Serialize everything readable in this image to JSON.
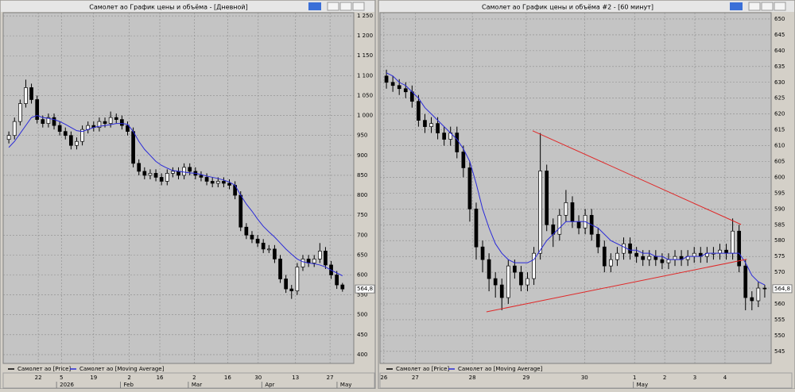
{
  "chart_data": [
    {
      "type": "candlestick",
      "title": "Самолет ао График цены и объёма - [Дневной]",
      "series": [
        {
          "name": "Самолет ао [Price]",
          "color": "#000000",
          "open": [
            940,
            950,
            985,
            1030,
            1070,
            1040,
            990,
            980,
            995,
            975,
            960,
            950,
            925,
            935,
            965,
            975,
            970,
            985,
            980,
            995,
            990,
            975,
            960,
            880,
            860,
            850,
            855,
            845,
            835,
            855,
            860,
            850,
            870,
            860,
            850,
            845,
            835,
            830,
            835,
            830,
            825,
            800,
            720,
            700,
            690,
            680,
            665,
            665,
            640,
            590,
            565,
            560,
            620,
            640,
            630,
            640,
            660,
            625,
            600,
            575
          ],
          "high": [
            960,
            995,
            1040,
            1090,
            1080,
            1050,
            1000,
            1005,
            1005,
            985,
            970,
            960,
            945,
            975,
            985,
            985,
            995,
            995,
            1010,
            1005,
            1000,
            985,
            970,
            890,
            870,
            865,
            865,
            855,
            865,
            870,
            870,
            880,
            880,
            870,
            860,
            855,
            845,
            845,
            845,
            840,
            835,
            810,
            730,
            710,
            700,
            690,
            675,
            675,
            650,
            600,
            575,
            630,
            650,
            650,
            650,
            680,
            670,
            635,
            610,
            580
          ],
          "low": [
            930,
            940,
            975,
            1020,
            1030,
            980,
            970,
            970,
            965,
            950,
            940,
            915,
            915,
            925,
            955,
            960,
            960,
            970,
            970,
            980,
            965,
            950,
            870,
            850,
            840,
            840,
            835,
            825,
            825,
            845,
            840,
            840,
            850,
            840,
            835,
            825,
            820,
            820,
            820,
            815,
            790,
            710,
            690,
            680,
            670,
            655,
            655,
            630,
            580,
            555,
            540,
            550,
            610,
            620,
            620,
            630,
            615,
            590,
            565,
            558
          ],
          "close": [
            950,
            985,
            1030,
            1070,
            1040,
            990,
            980,
            995,
            975,
            960,
            950,
            925,
            935,
            965,
            975,
            970,
            985,
            980,
            995,
            990,
            975,
            960,
            880,
            860,
            850,
            855,
            845,
            835,
            855,
            860,
            850,
            870,
            860,
            850,
            845,
            835,
            830,
            835,
            830,
            825,
            800,
            720,
            700,
            690,
            680,
            665,
            665,
            640,
            590,
            565,
            560,
            620,
            640,
            630,
            640,
            660,
            625,
            600,
            575,
            564.8
          ]
        },
        {
          "name": "Самолет ао [Moving Average]",
          "color": "#2a2ad8",
          "values": [
            920,
            935,
            955,
            975,
            995,
            1000,
            995,
            993,
            990,
            985,
            978,
            970,
            962,
            960,
            965,
            970,
            973,
            975,
            977,
            980,
            980,
            978,
            960,
            935,
            915,
            900,
            885,
            875,
            868,
            862,
            860,
            858,
            856,
            855,
            852,
            848,
            845,
            842,
            838,
            833,
            825,
            800,
            778,
            760,
            740,
            722,
            708,
            695,
            680,
            665,
            652,
            640,
            633,
            630,
            628,
            625,
            620,
            612,
            605,
            598
          ]
        }
      ],
      "xlim": [
        -1,
        61
      ],
      "xticks": [
        {
          "value": 5.2,
          "label": "22"
        },
        {
          "value": 9.3,
          "label": "5"
        },
        {
          "value": 15,
          "label": "19"
        },
        {
          "value": 21.3,
          "label": "2"
        },
        {
          "value": 26.7,
          "label": "16"
        },
        {
          "value": 32.8,
          "label": "2"
        },
        {
          "value": 38.7,
          "label": "16"
        },
        {
          "value": 44.1,
          "label": "30"
        },
        {
          "value": 50.7,
          "label": "13"
        },
        {
          "value": 56.8,
          "label": "27"
        }
      ],
      "x2ticks": [
        {
          "value": 9,
          "label": "2026"
        },
        {
          "value": 20.3,
          "label": "Feb"
        },
        {
          "value": 32.3,
          "label": "Mar"
        },
        {
          "value": 45.3,
          "label": "Apr"
        },
        {
          "value": 58.6,
          "label": "May"
        }
      ],
      "ylim": [
        378,
        1258
      ],
      "yticks": [
        400,
        450,
        500,
        550,
        600,
        650,
        700,
        750,
        800,
        850,
        900,
        950,
        {
          "value": 1000,
          "label": "1 000"
        },
        {
          "value": 1050,
          "label": "1 050"
        },
        {
          "value": 1100,
          "label": "1 100"
        },
        {
          "value": 1150,
          "label": "1 150"
        },
        {
          "value": 1200,
          "label": "1 200"
        },
        {
          "value": 1250,
          "label": "1 250"
        }
      ],
      "grid": true,
      "last_price": {
        "value": 564.8,
        "label": "564,8"
      }
    },
    {
      "type": "candlestick",
      "title": "Самолет ао График цены и объёма #2 - [60 минут]",
      "series": [
        {
          "name": "Самолет ао [Price]",
          "color": "#000000",
          "open": [
            632,
            630,
            629,
            628,
            627,
            624,
            618,
            616,
            617,
            614,
            612,
            614,
            608,
            603,
            590,
            578,
            574,
            568,
            566,
            562,
            572,
            570,
            566,
            568,
            576,
            602,
            585,
            582,
            588,
            592,
            586,
            584,
            588,
            582,
            578,
            572,
            574,
            576,
            579,
            576,
            575,
            574,
            575,
            574,
            573,
            574,
            575,
            574,
            575,
            576,
            575,
            576,
            576,
            577,
            576,
            583,
            572,
            562,
            561,
            565
          ],
          "high": [
            634,
            632,
            631,
            630,
            629,
            626,
            620,
            619,
            619,
            616,
            616,
            616,
            610,
            605,
            592,
            580,
            576,
            570,
            568,
            574,
            574,
            572,
            570,
            578,
            614,
            604,
            587,
            590,
            596,
            594,
            588,
            590,
            590,
            584,
            580,
            576,
            578,
            581,
            581,
            578,
            577,
            577,
            577,
            576,
            576,
            577,
            577,
            577,
            578,
            578,
            578,
            578,
            579,
            579,
            587,
            585,
            574,
            564,
            567,
            566
          ],
          "low": [
            628,
            627,
            626,
            625,
            622,
            616,
            614,
            614,
            612,
            610,
            610,
            606,
            600,
            586,
            574,
            570,
            564,
            562,
            558,
            560,
            568,
            564,
            564,
            566,
            574,
            583,
            578,
            580,
            586,
            584,
            582,
            582,
            580,
            576,
            570,
            570,
            572,
            574,
            574,
            573,
            572,
            572,
            572,
            571,
            571,
            572,
            572,
            572,
            573,
            573,
            573,
            574,
            574,
            574,
            574,
            570,
            558,
            558,
            559,
            562
          ],
          "close": [
            630,
            629,
            628,
            627,
            624,
            618,
            616,
            617,
            614,
            612,
            614,
            608,
            603,
            590,
            578,
            574,
            568,
            566,
            562,
            572,
            570,
            566,
            568,
            576,
            602,
            585,
            582,
            588,
            592,
            586,
            584,
            588,
            582,
            578,
            572,
            574,
            576,
            579,
            576,
            575,
            574,
            575,
            574,
            573,
            574,
            575,
            574,
            575,
            576,
            575,
            576,
            576,
            577,
            576,
            583,
            572,
            562,
            561,
            565,
            564.8
          ]
        },
        {
          "name": "Самолет ао [Moving Average]",
          "color": "#2a2ad8",
          "values": [
            633,
            632,
            630,
            629,
            627,
            625,
            622,
            620,
            618,
            616,
            614,
            612,
            609,
            605,
            598,
            590,
            584,
            579,
            576,
            574,
            573,
            573,
            573,
            574,
            577,
            580,
            582,
            584,
            586,
            586,
            586,
            586,
            585,
            584,
            582,
            580,
            579,
            578,
            577,
            577,
            576,
            576,
            575,
            575,
            574,
            574,
            574,
            575,
            575,
            575,
            576,
            576,
            576,
            576,
            576,
            576,
            573,
            569,
            567,
            566
          ]
        }
      ],
      "xlim": [
        -1,
        60
      ],
      "xticks": [
        {
          "value": -0.4,
          "label": "26"
        },
        {
          "value": 4.5,
          "label": "27"
        },
        {
          "value": 13.4,
          "label": "28"
        },
        {
          "value": 21.8,
          "label": "29"
        },
        {
          "value": 30.9,
          "label": "30"
        },
        {
          "value": 38.7,
          "label": "1"
        },
        {
          "value": 43.4,
          "label": "2"
        },
        {
          "value": 48.1,
          "label": "3"
        },
        {
          "value": 52.8,
          "label": "4"
        }
      ],
      "x2ticks": [
        {
          "value": 39,
          "label": "May"
        }
      ],
      "ylim": [
        541.2,
        652
      ],
      "yticks": [
        545,
        550,
        555,
        560,
        565,
        570,
        575,
        580,
        585,
        590,
        595,
        600,
        605,
        610,
        615,
        620,
        625,
        630,
        635,
        640,
        645,
        650
      ],
      "grid": true,
      "last_price": {
        "value": 564.8,
        "label": "564,8"
      },
      "trend_lines": [
        {
          "color": "#e02828",
          "x": [
            22.8,
            55.3
          ],
          "y": [
            614.7,
            585.1
          ]
        },
        {
          "color": "#e02828",
          "x": [
            15.6,
            56.2
          ],
          "y": [
            557.5,
            574.1
          ]
        }
      ]
    }
  ]
}
